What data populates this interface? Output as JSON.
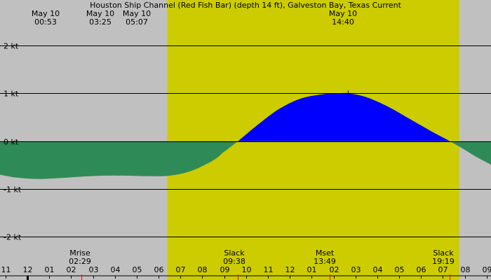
{
  "title": "Houston Ship Channel (Red Fish Bar) (depth 14 ft), Galveston Bay, Texas Current",
  "colors": {
    "night": "#c0c0c0",
    "day": "#cccc00",
    "flood": "#0000ff",
    "ebb": "#2e8b57",
    "grid": "#000000",
    "minor_tick": "#ff0000"
  },
  "top_events": [
    {
      "date": "May 10",
      "time": "00:53"
    },
    {
      "date": "May 10",
      "time": "03:25"
    },
    {
      "date": "May 10",
      "time": "05:07"
    },
    {
      "date": "May 10",
      "time": "14:40"
    }
  ],
  "bottom_events": [
    {
      "label": "Mrise",
      "time": "02:29"
    },
    {
      "label": "Slack",
      "time": "09:38"
    },
    {
      "label": "Mset",
      "time": "13:49"
    },
    {
      "label": "Slack",
      "time": "19:19"
    }
  ],
  "chart_data": {
    "type": "area",
    "title": "Houston Ship Channel (Red Fish Bar) (depth 14 ft), Galveston Bay, Texas Current",
    "ylabel": "",
    "yunit": "kt",
    "ylim": [
      -2.9,
      2.95
    ],
    "xlim_hours": [
      -1.25,
      21.2
    ],
    "y_ticks": [
      "2 kt",
      "1 kt",
      "0 kt",
      "-1 kt",
      "-2 kt"
    ],
    "y_tick_values": [
      2,
      1,
      0,
      -1,
      -2
    ],
    "x_ticks": [
      "11",
      "12",
      "01",
      "02",
      "03",
      "04",
      "05",
      "06",
      "07",
      "08",
      "09",
      "10",
      "11",
      "12",
      "01",
      "02",
      "03",
      "04",
      "05",
      "06",
      "07",
      "08",
      "09"
    ],
    "x_tick_hours": [
      -1,
      0,
      1,
      2,
      3,
      4,
      5,
      6,
      7,
      8,
      9,
      10,
      11,
      12,
      13,
      14,
      15,
      16,
      17,
      18,
      19,
      20,
      21
    ],
    "daylight_hours": [
      6.4,
      19.75
    ],
    "marked_tick_hours": [
      0
    ],
    "minor_tick_hours": [
      2.48,
      9.63,
      13.82,
      19.32
    ],
    "max_marker": {
      "hour": 14.67,
      "value": 1.0
    },
    "hours": [
      -1.25,
      -0.5,
      0.5,
      1.5,
      2.5,
      3.5,
      4.5,
      5.5,
      6.5,
      7.5,
      8.5,
      9.0,
      9.63,
      10.5,
      11.5,
      12.5,
      13.5,
      14.2,
      14.67,
      15.5,
      16.5,
      17.5,
      18.5,
      19.32,
      20.0,
      20.5,
      21.2
    ],
    "values": [
      -0.7,
      -0.76,
      -0.79,
      -0.77,
      -0.74,
      -0.72,
      -0.72,
      -0.73,
      -0.72,
      -0.62,
      -0.4,
      -0.22,
      0.0,
      0.33,
      0.67,
      0.89,
      0.98,
      1.0,
      1.0,
      0.92,
      0.72,
      0.46,
      0.2,
      0.0,
      -0.18,
      -0.32,
      -0.49
    ]
  }
}
